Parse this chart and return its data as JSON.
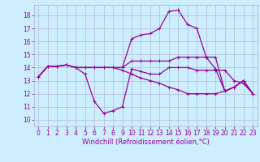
{
  "bg_color": "#cceeff",
  "grid_color": "#aaaacc",
  "line_color": "#990099",
  "marker": "+",
  "marker_size": 3,
  "linewidth": 0.9,
  "xlabel": "Windchill (Refroidissement éolien,°C)",
  "xlabel_fontsize": 6,
  "tick_fontsize": 5.5,
  "xlim": [
    -0.5,
    23.5
  ],
  "ylim": [
    9.5,
    18.8
  ],
  "yticks": [
    10,
    11,
    12,
    13,
    14,
    15,
    16,
    17,
    18
  ],
  "xticks": [
    0,
    1,
    2,
    3,
    4,
    5,
    6,
    7,
    8,
    9,
    10,
    11,
    12,
    13,
    14,
    15,
    16,
    17,
    18,
    19,
    20,
    21,
    22,
    23
  ],
  "series": [
    [
      13.3,
      14.1,
      14.1,
      14.2,
      14.0,
      13.5,
      11.4,
      10.5,
      10.7,
      11.0,
      13.9,
      13.7,
      13.5,
      13.5,
      14.0,
      14.0,
      14.0,
      13.8,
      13.8,
      13.8,
      13.8,
      13.0,
      12.8,
      12.0
    ],
    [
      13.3,
      14.1,
      14.1,
      14.2,
      14.0,
      14.0,
      14.0,
      14.0,
      14.0,
      14.0,
      16.2,
      16.5,
      16.6,
      17.0,
      18.3,
      18.4,
      17.3,
      17.0,
      14.8,
      13.9,
      12.2,
      12.5,
      13.0,
      12.0
    ],
    [
      13.3,
      14.1,
      14.1,
      14.2,
      14.0,
      14.0,
      14.0,
      14.0,
      14.0,
      14.0,
      14.5,
      14.5,
      14.5,
      14.5,
      14.5,
      14.8,
      14.8,
      14.8,
      14.8,
      14.8,
      12.2,
      12.5,
      13.0,
      12.0
    ],
    [
      13.3,
      14.1,
      14.1,
      14.2,
      14.0,
      14.0,
      14.0,
      14.0,
      14.0,
      13.8,
      13.5,
      13.2,
      13.0,
      12.8,
      12.5,
      12.3,
      12.0,
      12.0,
      12.0,
      12.0,
      12.2,
      12.5,
      13.0,
      12.0
    ]
  ]
}
